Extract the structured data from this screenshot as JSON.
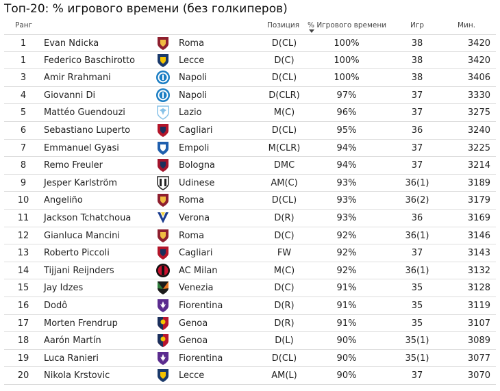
{
  "title": "Топ-20: % игрового времени (без голкиперов)",
  "header": {
    "rank": "Ранг",
    "position": "Позиция",
    "pct": "% Игрового времени",
    "games": "Игр",
    "minutes": "Мин."
  },
  "rows": [
    {
      "rank": "1",
      "name": "Evan Ndicka",
      "club": "Roma",
      "position": "D(CL)",
      "pct": "100%",
      "games": "38",
      "minutes": "3420",
      "logo": "roma-logo-icon",
      "c1": "#8e1f2f",
      "c2": "#f0bc42"
    },
    {
      "rank": "1",
      "name": "Federico Baschirotto",
      "club": "Lecce",
      "position": "D(C)",
      "pct": "100%",
      "games": "38",
      "minutes": "3420",
      "logo": "lecce-logo-icon",
      "c1": "#1b3a6b",
      "c2": "#f5c400"
    },
    {
      "rank": "3",
      "name": "Amir Rrahmani",
      "club": "Napoli",
      "position": "D(CL)",
      "pct": "100%",
      "games": "38",
      "minutes": "3406",
      "logo": "napoli-logo-icon",
      "c1": "#1d7fc4",
      "c2": "#ffffff"
    },
    {
      "rank": "4",
      "name": "Giovanni Di",
      "club": "Napoli",
      "position": "D(CLR)",
      "pct": "97%",
      "games": "37",
      "minutes": "3330",
      "logo": "napoli-logo-icon",
      "c1": "#1d7fc4",
      "c2": "#ffffff"
    },
    {
      "rank": "5",
      "name": "Mattéo Guendouzi",
      "club": "Lazio",
      "position": "M(C)",
      "pct": "96%",
      "games": "37",
      "minutes": "3275",
      "logo": "lazio-logo-icon",
      "c1": "#87c2e8",
      "c2": "#ffffff"
    },
    {
      "rank": "6",
      "name": "Sebastiano Luperto",
      "club": "Cagliari",
      "position": "D(CL)",
      "pct": "95%",
      "games": "36",
      "minutes": "3240",
      "logo": "cagliari-logo-icon",
      "c1": "#b3152a",
      "c2": "#1b2f5c"
    },
    {
      "rank": "7",
      "name": "Emmanuel Gyasi",
      "club": "Empoli",
      "position": "M(CLR)",
      "pct": "94%",
      "games": "37",
      "minutes": "3225",
      "logo": "empoli-logo-icon",
      "c1": "#1f5fae",
      "c2": "#ffffff"
    },
    {
      "rank": "8",
      "name": "Remo Freuler",
      "club": "Bologna",
      "position": "DMC",
      "pct": "94%",
      "games": "37",
      "minutes": "3214",
      "logo": "bologna-logo-icon",
      "c1": "#a2132c",
      "c2": "#1b2f5c"
    },
    {
      "rank": "9",
      "name": "Jesper Karlström",
      "club": "Udinese",
      "position": "AM(C)",
      "pct": "93%",
      "games": "36(1)",
      "minutes": "3189",
      "logo": "udinese-logo-icon",
      "c1": "#222222",
      "c2": "#ffffff"
    },
    {
      "rank": "10",
      "name": "Angeliño",
      "club": "Roma",
      "position": "D(CL)",
      "pct": "93%",
      "games": "36(2)",
      "minutes": "3179",
      "logo": "roma-logo-icon",
      "c1": "#8e1f2f",
      "c2": "#f0bc42"
    },
    {
      "rank": "11",
      "name": "Jackson Tchatchoua",
      "club": "Verona",
      "position": "D(R)",
      "pct": "93%",
      "games": "36",
      "minutes": "3169",
      "logo": "verona-logo-icon",
      "c1": "#1c3d8f",
      "c2": "#f2d23c"
    },
    {
      "rank": "12",
      "name": "Gianluca Mancini",
      "club": "Roma",
      "position": "D(C)",
      "pct": "92%",
      "games": "36(1)",
      "minutes": "3146",
      "logo": "roma-logo-icon",
      "c1": "#8e1f2f",
      "c2": "#f0bc42"
    },
    {
      "rank": "13",
      "name": "Roberto Piccoli",
      "club": "Cagliari",
      "position": "FW",
      "pct": "92%",
      "games": "37",
      "minutes": "3143",
      "logo": "cagliari-logo-icon",
      "c1": "#b3152a",
      "c2": "#1b2f5c"
    },
    {
      "rank": "14",
      "name": "Tijjani Reijnders",
      "club": "AC Milan",
      "position": "M(C)",
      "pct": "92%",
      "games": "36(1)",
      "minutes": "3132",
      "logo": "milan-logo-icon",
      "c1": "#c8102e",
      "c2": "#111111"
    },
    {
      "rank": "15",
      "name": "Jay Idzes",
      "club": "Venezia",
      "position": "D(C)",
      "pct": "91%",
      "games": "35",
      "minutes": "3128",
      "logo": "venezia-logo-icon",
      "c1": "#1a1a1a",
      "c2": "#e87722"
    },
    {
      "rank": "16",
      "name": "Dodô",
      "club": "Fiorentina",
      "position": "D(R)",
      "pct": "91%",
      "games": "35",
      "minutes": "3119",
      "logo": "fiorentina-logo-icon",
      "c1": "#5b2c8f",
      "c2": "#ffffff"
    },
    {
      "rank": "17",
      "name": "Morten Frendrup",
      "club": "Genoa",
      "position": "D(R)",
      "pct": "91%",
      "games": "35",
      "minutes": "3107",
      "logo": "genoa-logo-icon",
      "c1": "#b8152f",
      "c2": "#f5c400"
    },
    {
      "rank": "18",
      "name": "Aarón Martín",
      "club": "Genoa",
      "position": "D(L)",
      "pct": "90%",
      "games": "35(1)",
      "minutes": "3089",
      "logo": "genoa-logo-icon",
      "c1": "#b8152f",
      "c2": "#f5c400"
    },
    {
      "rank": "19",
      "name": "Luca Ranieri",
      "club": "Fiorentina",
      "position": "D(CL)",
      "pct": "90%",
      "games": "35(1)",
      "minutes": "3077",
      "logo": "fiorentina-logo-icon",
      "c1": "#5b2c8f",
      "c2": "#ffffff"
    },
    {
      "rank": "20",
      "name": "Nikola Krstovic",
      "club": "Lecce",
      "position": "AM(L)",
      "pct": "90%",
      "games": "37",
      "minutes": "3070",
      "logo": "lecce-logo-icon",
      "c1": "#1b3a6b",
      "c2": "#f5c400"
    }
  ]
}
